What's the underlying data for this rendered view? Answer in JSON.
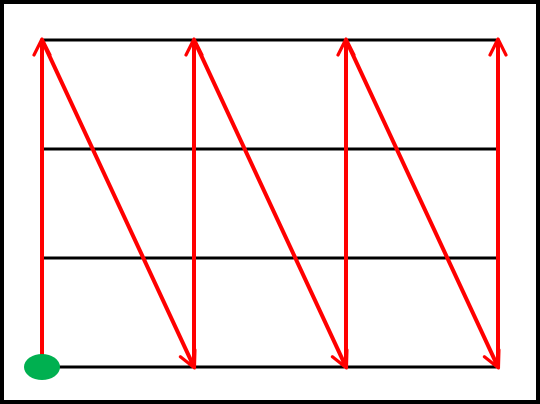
{
  "diagram": {
    "type": "grid-traversal",
    "grid": {
      "columns": 3,
      "rows": 3,
      "line_color": "#000000"
    },
    "path": {
      "color": "#ff0000",
      "pattern": "zigzag-column-scan",
      "start_corner": "bottom-left",
      "segments": [
        {
          "kind": "up",
          "from": [
            0,
            0
          ],
          "to": [
            0,
            3
          ]
        },
        {
          "kind": "diagonal-down",
          "from": [
            0,
            3
          ],
          "to": [
            1,
            0
          ]
        },
        {
          "kind": "up",
          "from": [
            1,
            0
          ],
          "to": [
            1,
            3
          ]
        },
        {
          "kind": "diagonal-down",
          "from": [
            1,
            3
          ],
          "to": [
            2,
            0
          ]
        },
        {
          "kind": "up",
          "from": [
            2,
            0
          ],
          "to": [
            2,
            3
          ]
        },
        {
          "kind": "diagonal-down",
          "from": [
            2,
            3
          ],
          "to": [
            3,
            0
          ]
        },
        {
          "kind": "up",
          "from": [
            3,
            0
          ],
          "to": [
            3,
            3
          ]
        }
      ]
    },
    "start_marker": {
      "color": "#00b050",
      "shape": "ellipse",
      "at": [
        0,
        0
      ]
    },
    "frame_color": "#000000",
    "background": "#ffffff"
  }
}
